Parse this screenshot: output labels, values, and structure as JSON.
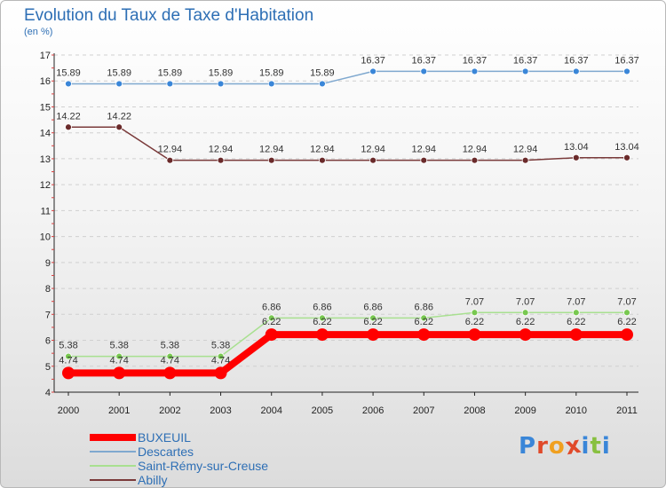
{
  "header": {
    "title": "Evolution du Taux de Taxe d'Habitation",
    "subtitle": "(en %)"
  },
  "logo": {
    "letters": [
      "P",
      "r",
      "o",
      "x",
      "i",
      "t",
      "i"
    ],
    "colors": [
      "#3a86d8",
      "#e04a2a",
      "#f0a020",
      "#e04a2a",
      "#3a86d8",
      "#88c040",
      "#3a86d8"
    ]
  },
  "chart_data": {
    "type": "line",
    "title": "Evolution du Taux de Taxe d'Habitation",
    "subtitle": "(en %)",
    "xlabel": "",
    "ylabel": "",
    "x": [
      "2000",
      "2001",
      "2002",
      "2003",
      "2004",
      "2005",
      "2006",
      "2007",
      "2008",
      "2009",
      "2010",
      "2011"
    ],
    "ylim": [
      4,
      17
    ],
    "yticks": [
      "4",
      "5",
      "6",
      "7",
      "8",
      "9",
      "10",
      "11",
      "12",
      "13",
      "14",
      "15",
      "16",
      "17"
    ],
    "grid": "horizontal",
    "legend_position": "bottom-left",
    "series": [
      {
        "name": "BUXEUIL",
        "color": "#ff0000",
        "emphasis": true,
        "values": [
          4.74,
          4.74,
          4.74,
          4.74,
          6.22,
          6.22,
          6.22,
          6.22,
          6.22,
          6.22,
          6.22,
          6.22
        ],
        "labels": [
          "4.74",
          "4.74",
          "4.74",
          "4.74",
          "6.22",
          "6.22",
          "6.22",
          "6.22",
          "6.22",
          "6.22",
          "6.22",
          "6.22"
        ]
      },
      {
        "name": "Descartes",
        "color": "#7fa8cf",
        "marker": "#3a86d8",
        "values": [
          15.89,
          15.89,
          15.89,
          15.89,
          15.89,
          15.89,
          16.37,
          16.37,
          16.37,
          16.37,
          16.37,
          16.37
        ],
        "labels": [
          "15.89",
          "15.89",
          "15.89",
          "15.89",
          "15.89",
          "15.89",
          "16.37",
          "16.37",
          "16.37",
          "16.37",
          "16.37",
          "16.37"
        ]
      },
      {
        "name": "Saint-Rémy-sur-Creuse",
        "color": "#a8e090",
        "marker": "#78c850",
        "values": [
          5.38,
          5.38,
          5.38,
          5.38,
          6.86,
          6.86,
          6.86,
          6.86,
          7.07,
          7.07,
          7.07,
          7.07
        ],
        "labels": [
          "5.38",
          "5.38",
          "5.38",
          "5.38",
          "6.86",
          "6.86",
          "6.86",
          "6.86",
          "7.07",
          "7.07",
          "7.07",
          "7.07"
        ]
      },
      {
        "name": "Abilly",
        "color": "#7a3a3a",
        "marker": "#6a2a2a",
        "values": [
          14.22,
          14.22,
          12.94,
          12.94,
          12.94,
          12.94,
          12.94,
          12.94,
          12.94,
          12.94,
          13.04,
          13.04
        ],
        "labels": [
          "14.22",
          "14.22",
          "12.94",
          "12.94",
          "12.94",
          "12.94",
          "12.94",
          "12.94",
          "12.94",
          "12.94",
          "13.04",
          "13.04"
        ]
      }
    ]
  }
}
